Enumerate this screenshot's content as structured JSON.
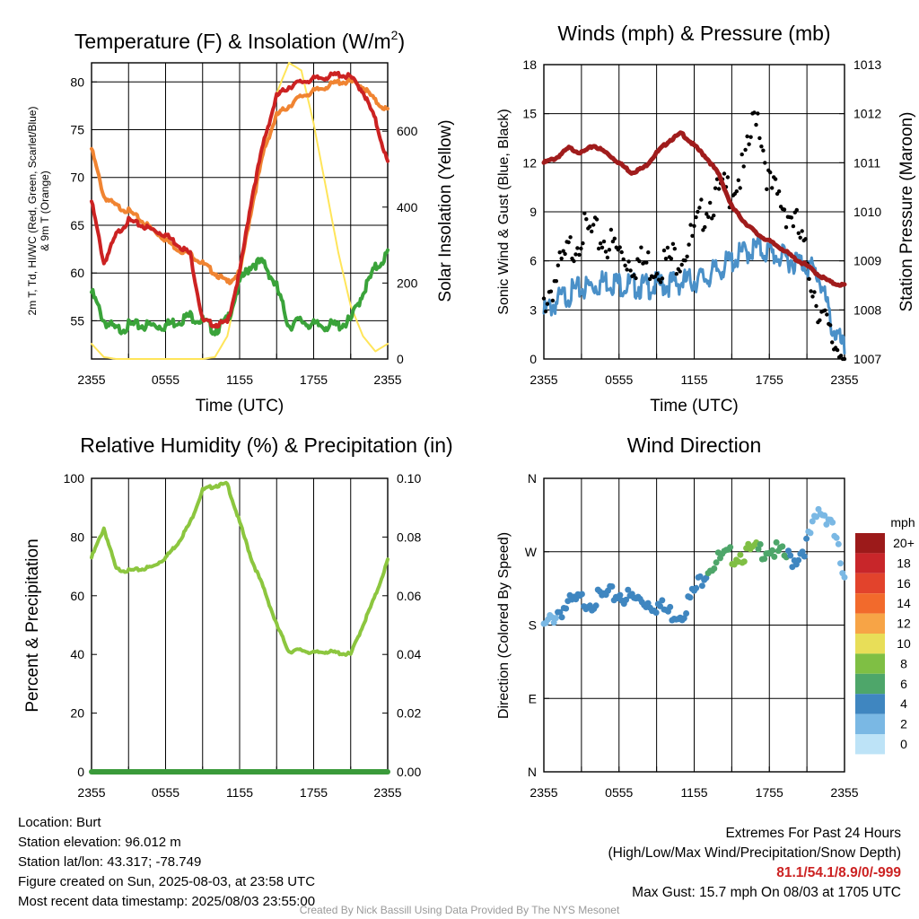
{
  "chart_data": [
    {
      "type": "line",
      "title": "Temperature (F) & Insolation (W/m²)",
      "title_main": "Temperature (F) & Insolation (W/m",
      "title_sup": "2",
      "title_end": ")",
      "xlabel": "Time (UTC)",
      "ylabel_left_line1": "2m T, Td, HI/WC (Red, Green, Scarlet/Blue)",
      "ylabel_left_line2": "& 9m T (Orange)",
      "ylabel_right": "Solar Insolation (Yellow)",
      "x_ticks": [
        "2355",
        "0555",
        "1155",
        "1755",
        "2355"
      ],
      "ylim_left": [
        51,
        82
      ],
      "y_ticks_left": [
        55,
        60,
        65,
        70,
        75,
        80
      ],
      "ylim_right": [
        0,
        780
      ],
      "y_ticks_right": [
        0,
        200,
        400,
        600
      ],
      "x_hours": [
        0,
        1,
        2,
        3,
        4,
        5,
        6,
        7,
        8,
        9,
        10,
        11,
        12,
        13,
        14,
        15,
        16,
        17,
        18,
        19,
        20,
        21,
        22,
        23,
        24
      ],
      "series": [
        {
          "key": "temp2m",
          "color": "#cc2222",
          "values": [
            67.5,
            61,
            64,
            65.5,
            65,
            64.5,
            64,
            63,
            62,
            55,
            54.6,
            54.8,
            60,
            68,
            74,
            78.5,
            79.5,
            80,
            80.3,
            80.5,
            80.8,
            80.5,
            79,
            76,
            71.5
          ]
        },
        {
          "key": "temp9m",
          "color": "#f08432",
          "values": [
            73,
            68,
            67,
            66.5,
            65.5,
            64.5,
            63.5,
            62.5,
            62,
            61,
            60,
            59,
            60,
            67,
            73,
            76.5,
            77.5,
            78.5,
            79,
            79.5,
            80,
            80,
            79.5,
            78,
            77
          ]
        },
        {
          "key": "dewpoint",
          "color": "#3aa33a",
          "values": [
            58,
            55,
            54,
            54.5,
            54.5,
            54.5,
            54.5,
            55,
            55.5,
            55,
            54,
            55,
            59,
            61,
            61,
            58.5,
            54.5,
            55,
            54.5,
            54.5,
            54.5,
            55,
            58,
            60.5,
            62
          ]
        },
        {
          "key": "insolation",
          "color": "#ffe55a",
          "values": [
            40,
            5,
            0,
            0,
            0,
            0,
            0,
            0,
            0,
            0,
            5,
            60,
            210,
            400,
            560,
            700,
            780,
            760,
            620,
            450,
            280,
            140,
            60,
            20,
            40
          ]
        }
      ]
    },
    {
      "type": "scatter",
      "title": "Winds (mph) & Pressure (mb)",
      "xlabel": "Time (UTC)",
      "ylabel_left": "Sonic Wind & Gust (Blue, Black)",
      "ylabel_right": "Station Pressure (Maroon)",
      "x_ticks": [
        "2355",
        "0555",
        "1155",
        "1755",
        "2355"
      ],
      "ylim_left": [
        0,
        18
      ],
      "y_ticks_left": [
        0,
        3,
        6,
        9,
        12,
        15,
        18
      ],
      "ylim_right": [
        1007,
        1013
      ],
      "y_ticks_right": [
        1007,
        1008,
        1009,
        1010,
        1011,
        1012,
        1013
      ],
      "x_hours": [
        0,
        1,
        2,
        3,
        4,
        5,
        6,
        7,
        8,
        9,
        10,
        11,
        12,
        13,
        14,
        15,
        16,
        17,
        18,
        19,
        20,
        21,
        22,
        23,
        24
      ],
      "series": [
        {
          "key": "wind",
          "color": "#4a90c8",
          "values": [
            2.8,
            3.5,
            4,
            4.3,
            4.5,
            4.8,
            4.6,
            4.5,
            4.4,
            4.5,
            4.6,
            4.7,
            4.8,
            5,
            5.5,
            6,
            6.5,
            6.8,
            6.5,
            6.2,
            6,
            5.8,
            5,
            2,
            0.5
          ]
        },
        {
          "key": "gust",
          "color": "#000000",
          "values": [
            3.5,
            5,
            6.5,
            7.8,
            7.5,
            7.2,
            6.5,
            6,
            5.8,
            5.8,
            6,
            6.5,
            7.5,
            9.5,
            10,
            10.5,
            11.5,
            15.5,
            10.5,
            9.5,
            8.5,
            6,
            3,
            1,
            0.5
          ]
        },
        {
          "key": "pressure",
          "color": "#a01c1c",
          "values": [
            1011,
            1011.1,
            1011.3,
            1011.2,
            1011.35,
            1011.2,
            1011,
            1010.8,
            1010.9,
            1011.2,
            1011.45,
            1011.6,
            1011.35,
            1011.1,
            1010.75,
            1010.1,
            1009.8,
            1009.55,
            1009.4,
            1009.25,
            1009.05,
            1008.9,
            1008.7,
            1008.55,
            1008.5
          ]
        }
      ]
    },
    {
      "type": "line",
      "title": "Relative Humidity (%) & Precipitation (in)",
      "ylabel": "Percent & Precipitation",
      "x_ticks": [
        "2355",
        "0555",
        "1155",
        "1755",
        "2355"
      ],
      "ylim_left": [
        0,
        100
      ],
      "y_ticks_left": [
        0,
        20,
        40,
        60,
        80,
        100
      ],
      "ylim_right": [
        0,
        0.1
      ],
      "y_ticks_right": [
        "0.00",
        "0.02",
        "0.04",
        "0.06",
        "0.08",
        "0.10"
      ],
      "x_hours": [
        0,
        1,
        2,
        3,
        4,
        5,
        6,
        7,
        8,
        9,
        10,
        11,
        12,
        13,
        14,
        15,
        16,
        17,
        18,
        19,
        20,
        21,
        22,
        23,
        24
      ],
      "series": [
        {
          "key": "rh",
          "color": "#8cc63f",
          "values": [
            73,
            83,
            69,
            68.5,
            69,
            70,
            73,
            78,
            85,
            96,
            97.5,
            98,
            85,
            72,
            62,
            50,
            41,
            41.5,
            40.5,
            41,
            40.5,
            40,
            50,
            60,
            72
          ]
        },
        {
          "key": "precip",
          "color": "#3a9a3a",
          "values": [
            0,
            0,
            0,
            0,
            0,
            0,
            0,
            0,
            0,
            0,
            0,
            0,
            0,
            0,
            0,
            0,
            0,
            0,
            0,
            0,
            0,
            0,
            0,
            0,
            0
          ]
        }
      ]
    },
    {
      "type": "scatter",
      "title": "Wind Direction",
      "ylabel": "Direction (Colored By Speed)",
      "x_ticks": [
        "2355",
        "0555",
        "1155",
        "1755",
        "2355"
      ],
      "y_ticks": [
        "N",
        "E",
        "S",
        "W",
        "N"
      ],
      "ylim_deg": [
        0,
        360
      ],
      "x_hours": [
        0,
        1,
        2,
        3,
        4,
        5,
        6,
        7,
        8,
        9,
        10,
        11,
        12,
        13,
        14,
        15,
        16,
        17,
        18,
        19,
        20,
        21,
        22,
        23,
        24
      ],
      "direction_deg": [
        175,
        195,
        205,
        210,
        210,
        215,
        218,
        212,
        210,
        205,
        195,
        195,
        220,
        250,
        260,
        265,
        268,
        270,
        275,
        265,
        260,
        280,
        320,
        310,
        230
      ],
      "speed_mph": [
        2,
        3,
        4,
        4,
        4,
        4,
        4,
        4,
        4,
        4,
        4,
        4,
        4,
        5,
        6,
        7,
        7,
        7,
        6,
        6,
        4,
        3,
        2,
        1,
        1
      ],
      "legend": {
        "title": "mph",
        "labels": [
          "20+",
          "18",
          "16",
          "14",
          "12",
          "10",
          "8",
          "6",
          "4",
          "2",
          "0"
        ],
        "colors": [
          "#9c1a1a",
          "#c8262a",
          "#e2432c",
          "#f26a2c",
          "#f7a446",
          "#e8de58",
          "#7fbf44",
          "#4ea66a",
          "#3f86c0",
          "#7ab8e4",
          "#bde3f7"
        ]
      }
    }
  ],
  "footer": {
    "location": "Location: Burt",
    "elevation": "Station elevation: 96.012 m",
    "latlon": "Station lat/lon: 43.317; -78.749",
    "created": "Figure created on Sun, 2025-08-03, at 23:58 UTC",
    "recent": "Most recent data timestamp: 2025/08/03 23:55:00",
    "extremes_title": "Extremes For Past 24 Hours",
    "extremes_sub": "(High/Low/Max Wind/Precipitation/Snow Depth)",
    "extremes_values": "81.1/54.1/8.9/0/-999",
    "max_gust": "Max Gust: 15.7 mph On 08/03 at 1705 UTC",
    "credit": "Created By Nick Bassill Using Data Provided By The NYS Mesonet"
  }
}
